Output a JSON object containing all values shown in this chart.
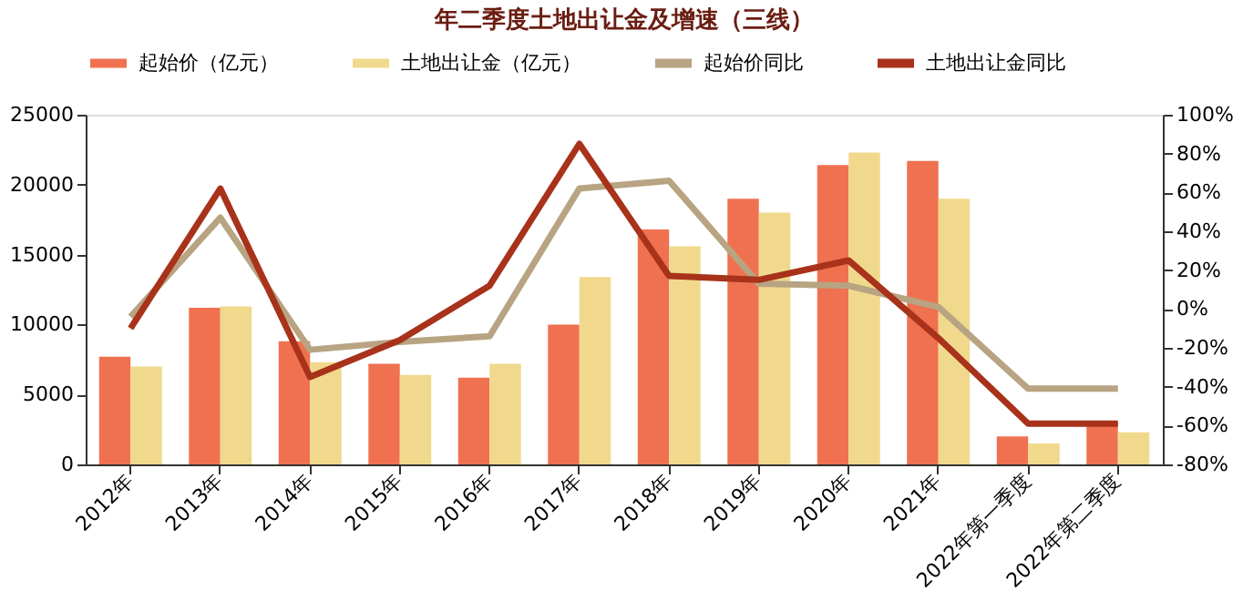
{
  "chart_data": {
    "type": "bar",
    "title": "年二季度土地出让金及增速（三线）",
    "categories": [
      "2012年",
      "2013年",
      "2014年",
      "2015年",
      "2016年",
      "2017年",
      "2018年",
      "2019年",
      "2020年",
      "2021年",
      "2022年第一季度",
      "2022年第二季度"
    ],
    "series": [
      {
        "name": "起始价（亿元）",
        "axis": "y",
        "color": "#ef7150",
        "values": [
          7700,
          11200,
          8800,
          7200,
          6200,
          10000,
          16800,
          19000,
          21400,
          21700,
          2000,
          3000
        ]
      },
      {
        "name": "土地出让金（亿元）",
        "axis": "y",
        "color": "#f0d98c",
        "values": [
          7000,
          11300,
          7300,
          6400,
          7200,
          13400,
          15600,
          18000,
          22300,
          19000,
          1500,
          2300
        ]
      },
      {
        "name": "起始价同比",
        "type": "line",
        "axis": "y2",
        "color": "#b8a482",
        "values": [
          -4,
          47,
          -21,
          -17,
          -14,
          62,
          66,
          13,
          12,
          1,
          -41,
          -41
        ]
      },
      {
        "name": "土地出让金同比",
        "type": "line",
        "axis": "y2",
        "color": "#a8321a",
        "values": [
          -10,
          62,
          -35,
          -16,
          12,
          85,
          17,
          15,
          25,
          -15,
          -59,
          -59
        ]
      }
    ],
    "ylim": [
      0,
      25000
    ],
    "yticks": [
      0,
      5000,
      10000,
      15000,
      20000,
      25000
    ],
    "y2lim": [
      -80,
      100
    ],
    "y2ticks": [
      {
        "value": -80,
        "label": "-80%"
      },
      {
        "value": -60,
        "label": "-60%"
      },
      {
        "value": -40,
        "label": "-40%"
      },
      {
        "value": -20,
        "label": "-20%"
      },
      {
        "value": 0,
        "label": "0%"
      },
      {
        "value": 20,
        "label": "20%"
      },
      {
        "value": 40,
        "label": "40%"
      },
      {
        "value": 60,
        "label": "60%"
      },
      {
        "value": 80,
        "label": "80%"
      },
      {
        "value": 100,
        "label": "100%"
      }
    ],
    "legend": "top",
    "grid": false,
    "line_style": "solid",
    "marker": "none"
  }
}
